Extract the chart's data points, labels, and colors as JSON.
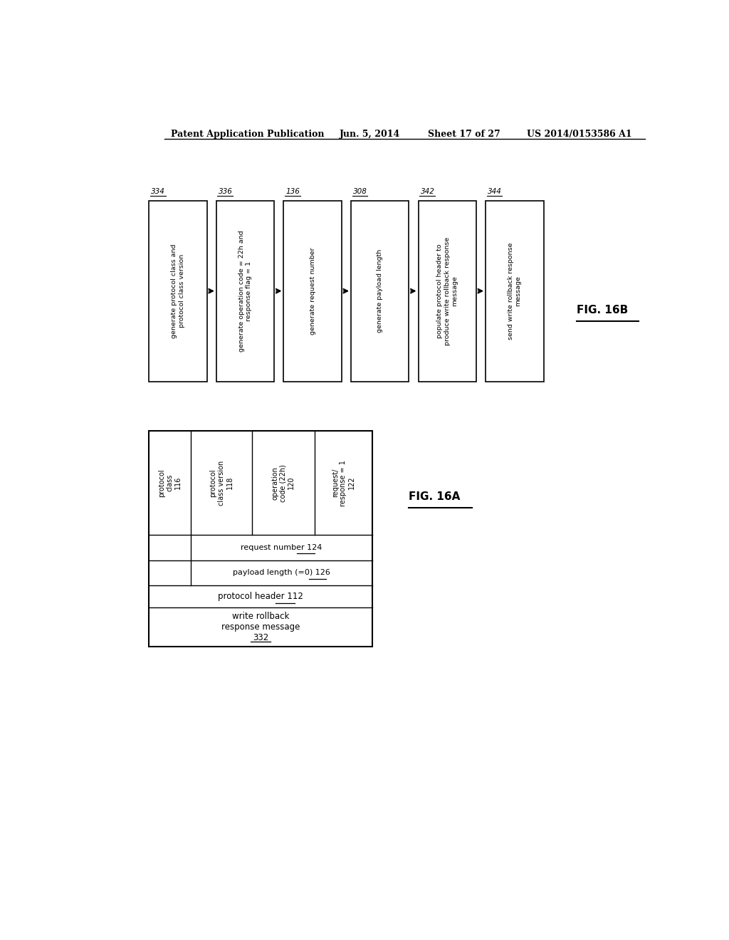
{
  "header_text": "Patent Application Publication",
  "header_date": "Jun. 5, 2014",
  "header_sheet": "Sheet 17 of 27",
  "header_patent": "US 2014/0153586 A1",
  "fig16b_title": "FIG. 16B",
  "fig16a_title": "FIG. 16A",
  "flowchart_boxes": [
    {
      "id": "334",
      "label": "generate protocol class and\nprotocol class version"
    },
    {
      "id": "336",
      "label": "generate operation code = 22h and\nresponse flag = 1"
    },
    {
      "id": "136",
      "label": "generate request number"
    },
    {
      "id": "308",
      "label": "generate payload length"
    },
    {
      "id": "342",
      "label": "populate protocol header to\nproduce write rollback response\nmessage"
    },
    {
      "id": "344",
      "label": "send write rollback response\nmessage"
    }
  ],
  "col_labels": [
    "protocol\nclass\n116",
    "protocol\nclass version\n118",
    "operation\ncode (22h)\n120",
    "request/\nresponse = 1\n122"
  ],
  "row2_label": "request number 124",
  "row3_label": "payload length (=0) 126",
  "protocol_header_label": "protocol header 112",
  "message_label": "write rollback\nresponse message\n332",
  "bg_color": "#ffffff"
}
